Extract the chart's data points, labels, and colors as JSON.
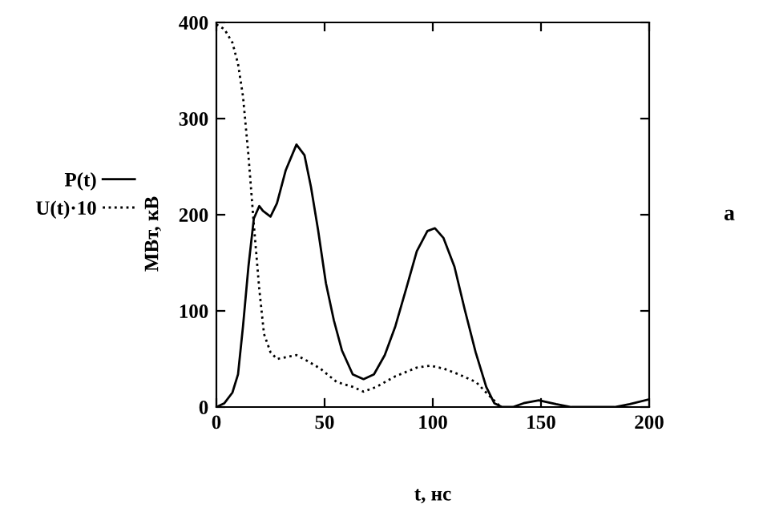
{
  "chart_data": {
    "type": "line",
    "xlabel": "t, нс",
    "ylabel": "МВт, кВ",
    "xlim": [
      0,
      200
    ],
    "ylim": [
      0,
      400
    ],
    "xticks": [
      0,
      50,
      100,
      150,
      200
    ],
    "yticks": [
      0,
      100,
      200,
      300,
      400
    ],
    "grid": false,
    "legend": "left",
    "marker": "none",
    "annotations": [
      "a"
    ],
    "series": [
      {
        "name": "P(t)",
        "color": "#000000",
        "line_style": "solid",
        "x": [
          0,
          3.7,
          7.4,
          10,
          12.3,
          14.8,
          17.3,
          19.8,
          21.5,
          25,
          28,
          32,
          37,
          40.7,
          43.7,
          47,
          50.6,
          54.3,
          58,
          63,
          68,
          72.8,
          77.8,
          82.7,
          87.7,
          92.6,
          97.5,
          101,
          104.9,
          110,
          114.8,
          119.8,
          124.7,
          128.4,
          132,
          137,
          142,
          149,
          157,
          164,
          184,
          191,
          200
        ],
        "values": [
          0,
          4,
          15,
          34,
          84,
          146,
          196,
          209,
          204,
          198,
          212,
          246,
          273,
          262,
          229,
          184,
          129,
          90,
          59,
          34,
          29,
          34,
          54,
          84,
          123,
          162,
          183,
          186,
          176,
          146,
          101,
          57,
          21,
          4,
          0,
          0,
          4,
          7,
          3,
          0,
          0,
          3,
          8
        ]
      },
      {
        "name": "U(t)·10",
        "color": "#000000",
        "line_style": "dotted",
        "x": [
          0,
          3.7,
          7.4,
          10,
          12.3,
          14.8,
          17.3,
          19.8,
          22,
          25,
          28,
          37,
          42,
          48,
          55.6,
          63,
          68,
          74,
          82.7,
          92.6,
          98.8,
          105,
          112,
          120,
          126,
          131
        ],
        "values": [
          398,
          393,
          379,
          357,
          323,
          262,
          190,
          123,
          76,
          57,
          50,
          54,
          48,
          40,
          26,
          21,
          16,
          21,
          32,
          41,
          43,
          40,
          34,
          26,
          12,
          1
        ]
      }
    ]
  }
}
